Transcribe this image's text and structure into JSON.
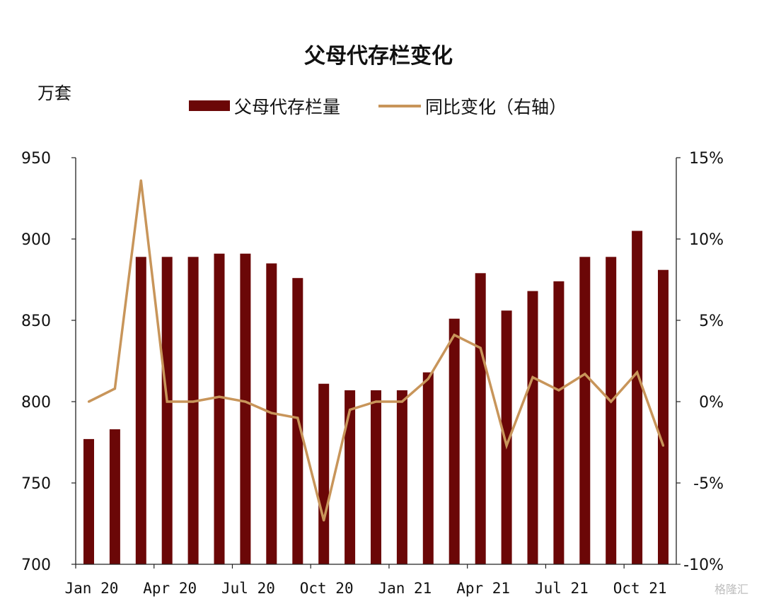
{
  "chart_data": {
    "type": "bar",
    "title": "父母代存栏变化",
    "left_axis_unit": "万套",
    "categories": [
      "Jan 20",
      "Feb 20",
      "Mar 20",
      "Apr 20",
      "May 20",
      "Jun 20",
      "Jul 20",
      "Aug 20",
      "Sep 20",
      "Oct 20",
      "Nov 20",
      "Dec 20",
      "Jan 21",
      "Feb 21",
      "Mar 21",
      "Apr 21",
      "May 21",
      "Jun 21",
      "Jul 21",
      "Aug 21",
      "Sep 21",
      "Oct 21",
      "Nov 21"
    ],
    "x_tick_labels": [
      "Jan 20",
      "Apr 20",
      "Jul 20",
      "Oct 20",
      "Jan 21",
      "Apr 21",
      "Jul 21",
      "Oct 21"
    ],
    "x_tick_category_index": [
      0,
      3,
      6,
      9,
      12,
      15,
      18,
      21
    ],
    "series": [
      {
        "name": "父母代存栏量",
        "type": "bar",
        "axis": "left",
        "color": "#6b0707",
        "values": [
          777,
          783,
          889,
          889,
          889,
          891,
          891,
          885,
          876,
          811,
          807,
          807,
          807,
          818,
          851,
          879,
          856,
          868,
          874,
          889,
          889,
          905,
          881
        ]
      },
      {
        "name": "同比变化（右轴）",
        "type": "line",
        "axis": "right",
        "color": "#c8955a",
        "values": [
          0.0,
          0.8,
          13.6,
          0.0,
          0.0,
          0.3,
          0.0,
          -0.7,
          -1.0,
          -7.3,
          -0.5,
          0.0,
          0.0,
          1.4,
          4.1,
          3.3,
          -2.7,
          1.5,
          0.7,
          1.7,
          0.0,
          1.8,
          -2.7
        ]
      }
    ],
    "y_left": {
      "min": 700,
      "max": 950,
      "ticks": [
        700,
        750,
        800,
        850,
        900,
        950
      ]
    },
    "y_right": {
      "min": -10,
      "max": 15,
      "ticks": [
        -10,
        -5,
        0,
        5,
        10,
        15
      ],
      "tick_labels": [
        "-10%",
        "-5%",
        "0%",
        "5%",
        "10%",
        "15%"
      ]
    },
    "grid": false,
    "legend_position": "top-center"
  },
  "watermark": "格隆汇"
}
